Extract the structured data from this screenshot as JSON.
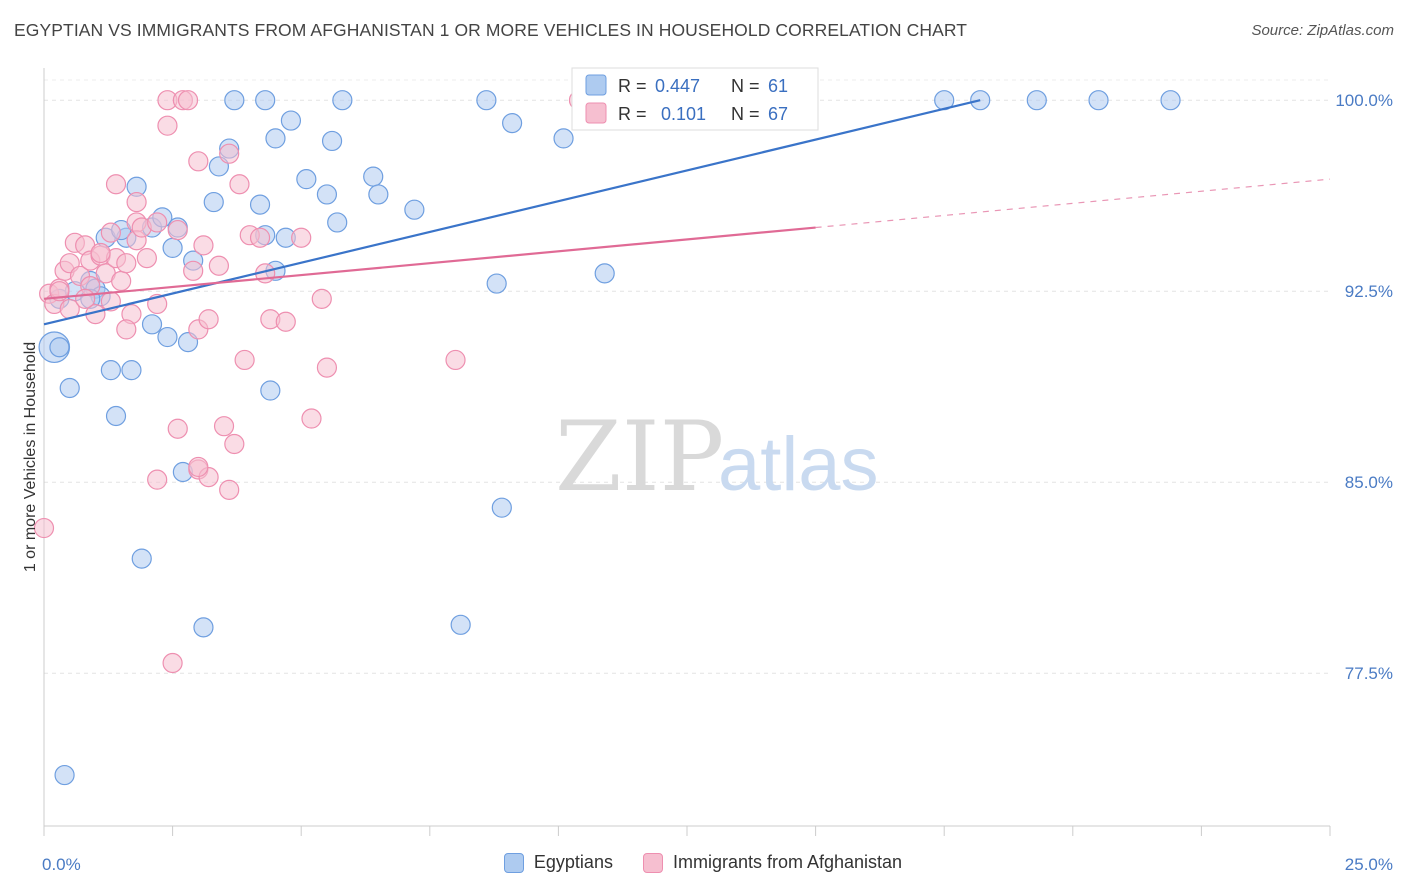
{
  "title": "EGYPTIAN VS IMMIGRANTS FROM AFGHANISTAN 1 OR MORE VEHICLES IN HOUSEHOLD CORRELATION CHART",
  "source": "Source: ZipAtlas.com",
  "watermark": {
    "zip": "ZIP",
    "atlas": "atlas"
  },
  "colors": {
    "blue_fill": "#aecbf0",
    "blue_stroke": "#6f9fe0",
    "blue_line": "#3a74c9",
    "pink_fill": "#f6bfd0",
    "pink_stroke": "#ee8fb0",
    "pink_line": "#e06a95"
  },
  "legend": {
    "rows": [
      {
        "r_label": "R =",
        "r_value": "0.447",
        "n_label": "N =",
        "n_value": "61"
      },
      {
        "r_label": "R =",
        "r_value": "0.101",
        "n_label": "N =",
        "n_value": "67"
      }
    ],
    "bottom": [
      "Egyptians",
      "Immigrants from Afghanistan"
    ]
  },
  "chart_data": {
    "type": "scatter",
    "title": "EGYPTIAN VS IMMIGRANTS FROM AFGHANISTAN 1 OR MORE VEHICLES IN HOUSEHOLD CORRELATION CHART",
    "xlabel": "",
    "ylabel": "1 or more Vehicles in Household",
    "xlim": [
      0,
      25
    ],
    "ylim": [
      71.5,
      101.5
    ],
    "x_tick_labels": [
      {
        "v": 0,
        "t": "0.0%"
      },
      {
        "v": 25,
        "t": "25.0%"
      }
    ],
    "y_tick_labels": [
      {
        "v": 100,
        "t": "100.0%"
      },
      {
        "v": 92.5,
        "t": "92.5%"
      },
      {
        "v": 85,
        "t": "85.0%"
      },
      {
        "v": 77.5,
        "t": "77.5%"
      }
    ],
    "x_minor_ticks": [
      0,
      2.5,
      5,
      7.5,
      10,
      12.5,
      15,
      17.5,
      20,
      22.5,
      25
    ],
    "grid": true,
    "legend_position": "top-center",
    "series": [
      {
        "name": "Egyptians",
        "r": 0.447,
        "n": 61,
        "trend": {
          "x0": 0,
          "y0": 91.2,
          "x1": 18.2,
          "y1": 100.0
        },
        "points": [
          [
            0.2,
            90.3,
            1.6
          ],
          [
            0.3,
            92.2,
            1
          ],
          [
            0.6,
            92.5,
            1
          ],
          [
            0.9,
            92.9,
            1
          ],
          [
            1.0,
            92.6,
            1
          ],
          [
            1.1,
            92.3,
            1
          ],
          [
            0.5,
            88.7,
            1
          ],
          [
            1.3,
            89.4,
            1
          ],
          [
            1.4,
            87.6,
            1
          ],
          [
            1.7,
            89.4,
            1
          ],
          [
            1.2,
            94.6,
            1
          ],
          [
            1.6,
            94.6,
            1
          ],
          [
            1.5,
            94.9,
            1
          ],
          [
            1.8,
            96.6,
            1
          ],
          [
            2.1,
            95.0,
            1
          ],
          [
            2.3,
            95.4,
            1
          ],
          [
            2.6,
            95.0,
            1
          ],
          [
            2.5,
            94.2,
            1
          ],
          [
            2.9,
            93.7,
            1
          ],
          [
            3.3,
            96.0,
            1
          ],
          [
            3.4,
            97.4,
            1
          ],
          [
            3.6,
            98.1,
            1
          ],
          [
            3.7,
            100.0,
            1
          ],
          [
            4.2,
            95.9,
            1
          ],
          [
            4.3,
            94.7,
            1
          ],
          [
            4.5,
            93.3,
            1
          ],
          [
            4.3,
            100.0,
            1
          ],
          [
            4.5,
            98.5,
            1
          ],
          [
            4.8,
            99.2,
            1
          ],
          [
            4.7,
            94.6,
            1
          ],
          [
            5.1,
            96.9,
            1
          ],
          [
            5.5,
            96.3,
            1
          ],
          [
            5.6,
            98.4,
            1
          ],
          [
            5.7,
            95.2,
            1
          ],
          [
            5.8,
            100.0,
            1
          ],
          [
            6.4,
            97.0,
            1
          ],
          [
            6.5,
            96.3,
            1
          ],
          [
            7.2,
            95.7,
            1
          ],
          [
            8.6,
            100.0,
            1
          ],
          [
            8.8,
            92.8,
            1
          ],
          [
            9.1,
            99.1,
            1
          ],
          [
            10.1,
            98.5,
            1
          ],
          [
            10.9,
            93.2,
            1
          ],
          [
            12.3,
            100.0,
            1
          ],
          [
            17.5,
            100.0,
            1
          ],
          [
            18.2,
            100.0,
            1
          ],
          [
            19.3,
            100.0,
            1
          ],
          [
            20.5,
            100.0,
            1
          ],
          [
            21.9,
            100.0,
            1
          ],
          [
            2.1,
            91.2,
            1
          ],
          [
            2.4,
            90.7,
            1
          ],
          [
            2.8,
            90.5,
            1
          ],
          [
            4.4,
            88.6,
            1
          ],
          [
            1.9,
            82.0,
            1
          ],
          [
            3.1,
            79.3,
            1
          ],
          [
            8.9,
            84.0,
            1
          ],
          [
            8.1,
            79.4,
            1
          ],
          [
            2.7,
            85.4,
            1
          ],
          [
            0.4,
            73.5,
            1
          ],
          [
            0.3,
            90.3,
            1
          ],
          [
            0.9,
            92.2,
            1
          ]
        ]
      },
      {
        "name": "Immigrants from Afghanistan",
        "r": 0.101,
        "n": 67,
        "trend": {
          "x0": 0,
          "y0": 92.2,
          "x1": 15.0,
          "y1": 95.0
        },
        "trend_dashed": {
          "x0": 15.0,
          "y0": 95.0,
          "x1": 25.0,
          "y1": 96.9
        },
        "points": [
          [
            0.1,
            92.4,
            1
          ],
          [
            0.2,
            92.0,
            1
          ],
          [
            0.3,
            92.6,
            1
          ],
          [
            0.4,
            93.3,
            1
          ],
          [
            0.5,
            93.6,
            1
          ],
          [
            0.5,
            91.8,
            1
          ],
          [
            0.6,
            94.4,
            1
          ],
          [
            0.7,
            93.1,
            1
          ],
          [
            0.8,
            94.3,
            1
          ],
          [
            0.9,
            92.7,
            1
          ],
          [
            0.9,
            93.7,
            1
          ],
          [
            1.0,
            91.6,
            1
          ],
          [
            1.1,
            93.9,
            1
          ],
          [
            1.2,
            93.2,
            1
          ],
          [
            1.3,
            94.8,
            1
          ],
          [
            1.3,
            92.1,
            1
          ],
          [
            1.4,
            93.8,
            1
          ],
          [
            1.5,
            92.9,
            1
          ],
          [
            1.6,
            93.6,
            1
          ],
          [
            1.7,
            91.6,
            1
          ],
          [
            1.8,
            95.2,
            1
          ],
          [
            1.8,
            94.5,
            1
          ],
          [
            1.9,
            95.0,
            1
          ],
          [
            2.0,
            93.8,
            1
          ],
          [
            2.2,
            92.0,
            1
          ],
          [
            2.2,
            95.2,
            1
          ],
          [
            2.4,
            99.0,
            1
          ],
          [
            2.4,
            100.0,
            1
          ],
          [
            2.7,
            100.0,
            1
          ],
          [
            2.8,
            100.0,
            1
          ],
          [
            2.9,
            93.3,
            1
          ],
          [
            3.0,
            97.6,
            1
          ],
          [
            3.0,
            91.0,
            1
          ],
          [
            3.1,
            94.3,
            1
          ],
          [
            3.2,
            91.4,
            1
          ],
          [
            3.4,
            93.5,
            1
          ],
          [
            3.6,
            97.9,
            1
          ],
          [
            3.8,
            96.7,
            1
          ],
          [
            3.9,
            89.8,
            1
          ],
          [
            4.0,
            94.7,
            1
          ],
          [
            4.2,
            94.6,
            1
          ],
          [
            4.3,
            93.2,
            1
          ],
          [
            4.4,
            91.4,
            1
          ],
          [
            4.7,
            91.3,
            1
          ],
          [
            5.0,
            94.6,
            1
          ],
          [
            5.4,
            92.2,
            1
          ],
          [
            5.5,
            89.5,
            1
          ],
          [
            5.2,
            87.5,
            1
          ],
          [
            8.0,
            89.8,
            1
          ],
          [
            3.5,
            87.2,
            1
          ],
          [
            2.6,
            87.1,
            1
          ],
          [
            2.2,
            85.1,
            1
          ],
          [
            3.0,
            85.5,
            1
          ],
          [
            3.2,
            85.2,
            1
          ],
          [
            3.6,
            84.7,
            1
          ],
          [
            3.7,
            86.5,
            1
          ],
          [
            2.5,
            77.9,
            1
          ],
          [
            1.8,
            96.0,
            1
          ],
          [
            1.6,
            91.0,
            1
          ],
          [
            1.4,
            96.7,
            1
          ],
          [
            0.0,
            83.2,
            1
          ],
          [
            10.4,
            100.0,
            1
          ],
          [
            1.1,
            94.0,
            1
          ],
          [
            0.8,
            92.2,
            1
          ],
          [
            2.6,
            94.9,
            1
          ],
          [
            3.0,
            85.6,
            1
          ],
          [
            0.3,
            92.5,
            1
          ]
        ]
      }
    ]
  }
}
